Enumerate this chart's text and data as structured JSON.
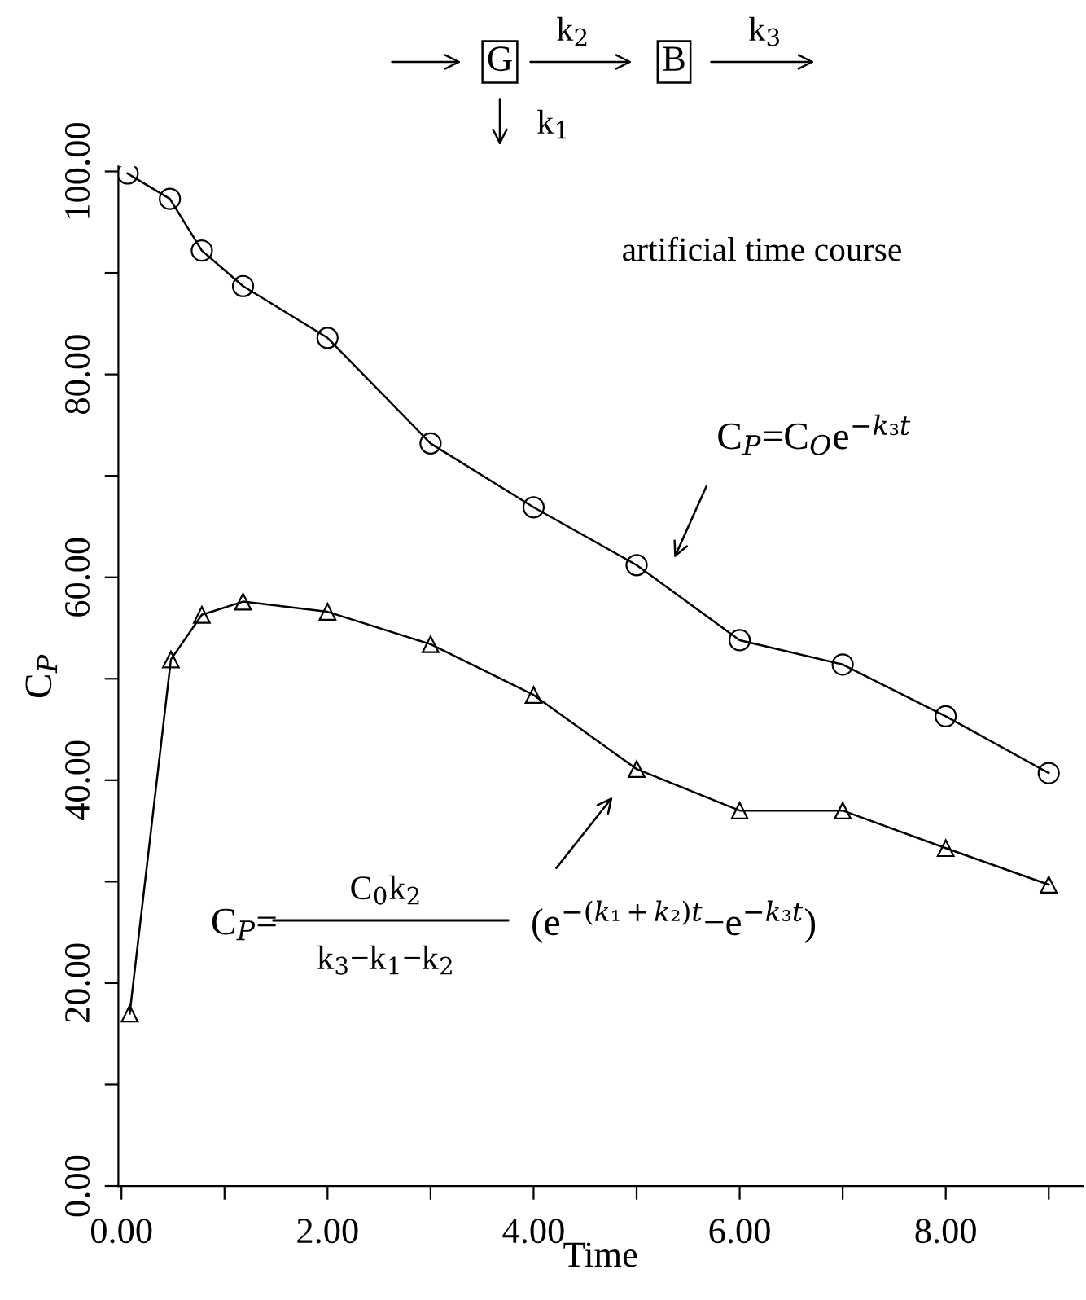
{
  "chart_data": {
    "type": "line",
    "xlabel": "Time",
    "ylabel": "C$_{P}$",
    "series": [
      {
        "color": "#000000",
        "marker": "circle",
        "x": [
          0.06,
          0.47,
          0.78,
          1.18,
          2.0,
          3.0,
          4.0,
          5.0,
          6.0,
          7.0,
          8.0,
          9.0
        ],
        "values": [
          99.8,
          97.3,
          92.2,
          88.7,
          83.6,
          73.2,
          66.9,
          61.2,
          53.8,
          51.4,
          46.3,
          40.7
        ]
      },
      {
        "color": "#000000",
        "marker": "triangle",
        "x": [
          0.08,
          0.48,
          0.78,
          1.18,
          2.0,
          3.0,
          4.0,
          5.0,
          6.0,
          7.0,
          8.0,
          9.0
        ],
        "values": [
          17.0,
          51.9,
          56.3,
          57.6,
          56.6,
          53.4,
          48.4,
          41.1,
          37.0,
          37.0,
          33.3,
          29.7
        ]
      }
    ],
    "xlim": [
      -0.03,
      9.33
    ],
    "ylim": [
      0,
      100.5
    ],
    "xticks": [
      {
        "value": 0,
        "label": "0.00"
      },
      {
        "value": 1,
        "label": null
      },
      {
        "value": 2,
        "label": "2.00"
      },
      {
        "value": 3,
        "label": null
      },
      {
        "value": 4,
        "label": "4.00"
      },
      {
        "value": 5,
        "label": null
      },
      {
        "value": 6,
        "label": "6.00"
      },
      {
        "value": 7,
        "label": null
      },
      {
        "value": 8,
        "label": "8.00"
      },
      {
        "value": 9,
        "label": null
      }
    ],
    "yticks": [
      {
        "value": 0,
        "label": "0.00"
      },
      {
        "value": 10,
        "label": null
      },
      {
        "value": 20,
        "label": "20.00"
      },
      {
        "value": 30,
        "label": null
      },
      {
        "value": 40,
        "label": "40.00"
      },
      {
        "value": 50,
        "label": null
      },
      {
        "value": 60,
        "label": "60.00"
      },
      {
        "value": 70,
        "label": null
      },
      {
        "value": 80,
        "label": "80.00"
      },
      {
        "value": 90,
        "label": null
      },
      {
        "value": 100,
        "label": "100.00"
      }
    ],
    "grid": false,
    "legend": false,
    "line_style": "solid",
    "annotations": [
      "artificial time course",
      "C$_{P}$=C$_{O}$e$^{−k₃t}$",
      "C$_{P}$=",
      "C$_{0}$k$_{2}$",
      "k$_{3}$−k$_{1}$−k$_{2}$",
      "(e$^{−(k₁+k₂)t}$−e$^{−k₃t}$)",
      "G",
      "B",
      "k$_{2}$",
      "k$_{3}$",
      "k$_{1}$"
    ]
  }
}
